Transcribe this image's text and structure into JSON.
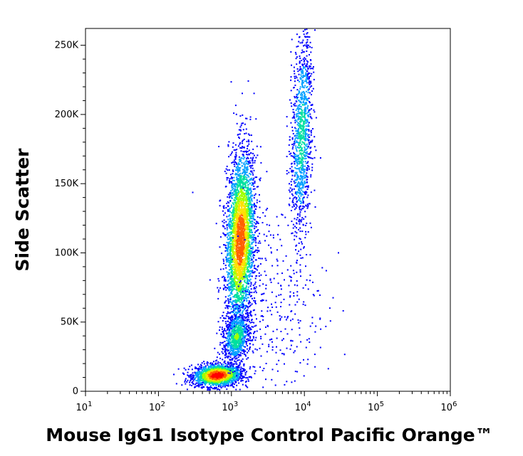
{
  "chart_data": {
    "type": "scatter",
    "style": "density-pseudocolor",
    "title": "",
    "xlabel": "Mouse IgG1 Isotype Control Pacific Orange™",
    "ylabel": "Side Scatter",
    "x_scale": "log",
    "y_scale": "linear",
    "xlim": [
      10,
      100000
    ],
    "ylim": [
      0,
      262144
    ],
    "x_ticks": [
      {
        "value": 10,
        "base": "10",
        "exp": "1"
      },
      {
        "value": 100,
        "base": "10",
        "exp": "2"
      },
      {
        "value": 1000,
        "base": "10",
        "exp": "3"
      },
      {
        "value": 10000,
        "base": "10",
        "exp": "4"
      },
      {
        "value": 100000,
        "base": "10",
        "exp": "5"
      },
      {
        "value": 1000000,
        "base": "10",
        "exp": "6"
      }
    ],
    "y_ticks": [
      {
        "value": 0,
        "label": "0"
      },
      {
        "value": 50000,
        "label": "50K"
      },
      {
        "value": 100000,
        "label": "100K"
      },
      {
        "value": 150000,
        "label": "150K"
      },
      {
        "value": 200000,
        "label": "200K"
      },
      {
        "value": 250000,
        "label": "250K"
      }
    ],
    "colormap": [
      "#0000ff",
      "#00a0ff",
      "#00e0a0",
      "#a0ff00",
      "#ffe000",
      "#ff6000",
      "#ff0000"
    ],
    "populations": [
      {
        "x_center": 630,
        "y_center": 12000,
        "sx_log": 0.16,
        "sy": 4000,
        "n": 1800,
        "peak": 1.0
      },
      {
        "x_center": 1300,
        "y_center": 110000,
        "sx_log": 0.1,
        "sy": 32000,
        "n": 3200,
        "peak": 0.85
      },
      {
        "x_center": 1150,
        "y_center": 40000,
        "sx_log": 0.09,
        "sy": 9000,
        "n": 800,
        "peak": 0.45
      },
      {
        "x_center": 9000,
        "y_center": 185000,
        "sx_log": 0.07,
        "sy": 38000,
        "n": 1100,
        "peak": 0.35
      },
      {
        "x_center": 4000,
        "y_center": 60000,
        "sx_log": 0.35,
        "sy": 40000,
        "n": 350,
        "peak": 0.05
      }
    ]
  }
}
